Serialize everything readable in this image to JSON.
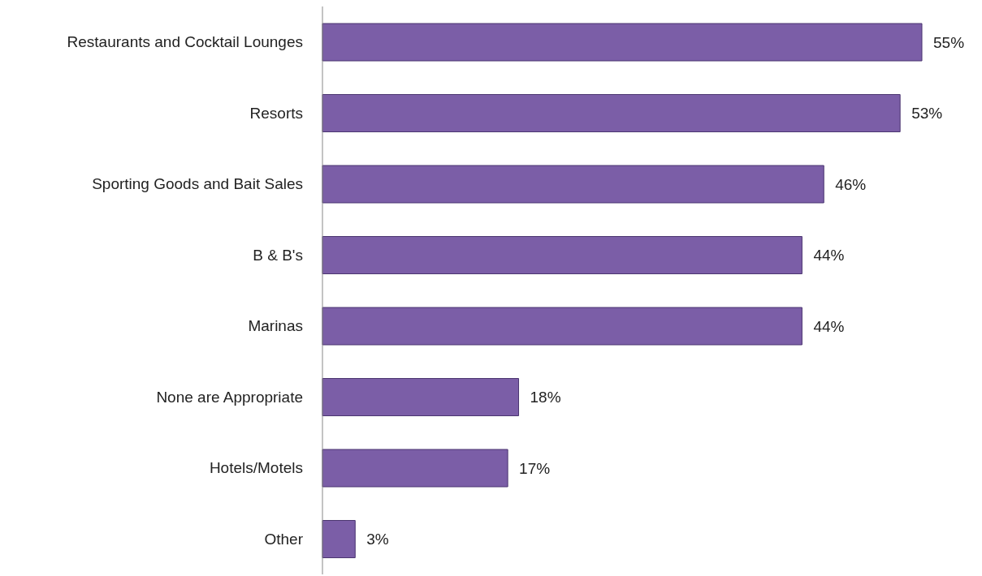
{
  "chart_data": {
    "type": "bar",
    "orientation": "horizontal",
    "categories": [
      "Restaurants and Cocktail Lounges",
      "Resorts",
      "Sporting Goods and Bait Sales",
      "B & B's",
      "Marinas",
      "None are Appropriate",
      "Hotels/Motels",
      "Other"
    ],
    "values": [
      55,
      53,
      46,
      44,
      44,
      18,
      17,
      3
    ],
    "value_labels": [
      "55%",
      "53%",
      "46%",
      "44%",
      "44%",
      "18%",
      "17%",
      "3%"
    ],
    "color": "#7b5ea7"
  }
}
